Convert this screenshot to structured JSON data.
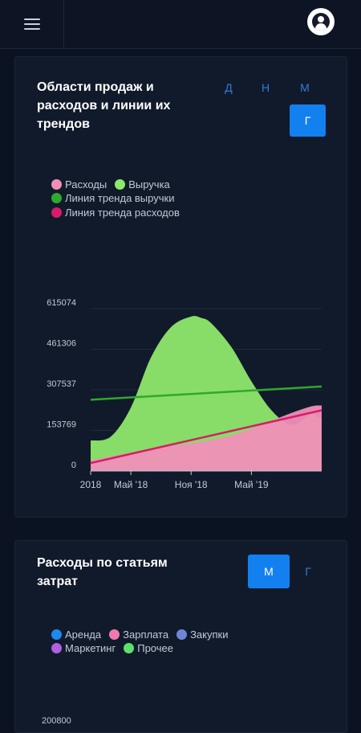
{
  "header": {
    "menu_icon": "hamburger-menu-icon",
    "avatar_icon": "user-account-icon"
  },
  "sales_card": {
    "title": "Области продаж и расходов и линии их трендов",
    "periods": [
      "Д",
      "Н",
      "М"
    ],
    "active_period": "Г",
    "legend": [
      {
        "label": "Расходы",
        "color": "#f08fb8"
      },
      {
        "label": "Выручка",
        "color": "#8ee86a"
      },
      {
        "label": "Линия тренда выручки",
        "color": "#2fa82f"
      },
      {
        "label": "Линия тренда расходов",
        "color": "#d81b6a"
      }
    ]
  },
  "expenses_card": {
    "title": "Расходы по статьям затрат",
    "active_period": "М",
    "other_period": "Г",
    "legend": [
      {
        "label": "Аренда",
        "color": "#1f88f0"
      },
      {
        "label": "Зарплата",
        "color": "#f07ab0"
      },
      {
        "label": "Закупки",
        "color": "#6f86d8"
      },
      {
        "label": "Маркетинг",
        "color": "#b060e0"
      },
      {
        "label": "Прочее",
        "color": "#5ee06e"
      }
    ],
    "y_top_label": "200800"
  },
  "chart_data": [
    {
      "type": "area",
      "y_ticks": [
        "615074",
        "461306",
        "307537",
        "153769",
        "0"
      ],
      "ylim": [
        0,
        615074
      ],
      "x_ticks": [
        "2018",
        "Май '18",
        "Ноя '18",
        "Май '19"
      ],
      "x_tick_months": [
        0,
        4,
        10,
        16
      ],
      "x_range_months": [
        0,
        23
      ],
      "series": [
        {
          "name": "Выручка",
          "x_months": [
            0,
            2,
            4,
            6,
            8,
            10,
            11,
            12,
            14,
            16,
            18,
            20,
            22,
            23
          ],
          "values": [
            115000,
            130000,
            240000,
            430000,
            545000,
            585000,
            580000,
            560000,
            470000,
            340000,
            230000,
            175000,
            215000,
            195000
          ]
        },
        {
          "name": "Расходы",
          "x_months": [
            0,
            2,
            4,
            6,
            8,
            10,
            12,
            14,
            16,
            18,
            20,
            22,
            23
          ],
          "values": [
            40000,
            55000,
            70000,
            85000,
            95000,
            105000,
            118000,
            135000,
            160000,
            190000,
            220000,
            245000,
            248000
          ]
        },
        {
          "name": "Линия тренда выручки",
          "x_months": [
            0,
            23
          ],
          "values": [
            270000,
            320000
          ]
        },
        {
          "name": "Линия тренда расходов",
          "x_months": [
            0,
            23
          ],
          "values": [
            30000,
            230000
          ]
        }
      ]
    }
  ]
}
